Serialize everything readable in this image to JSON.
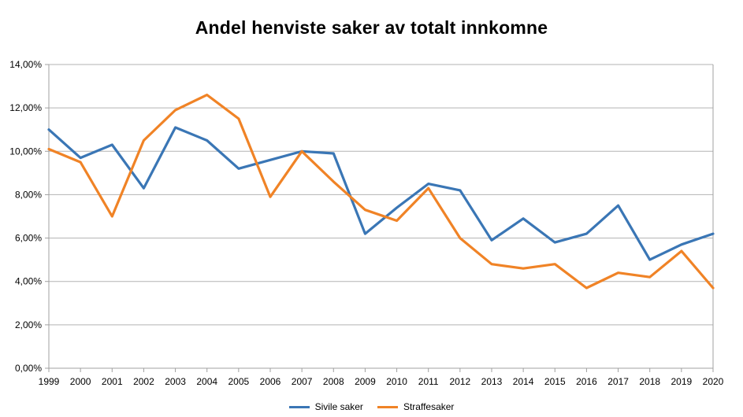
{
  "chart_data": {
    "type": "line",
    "title": "Andel henviste saker av totalt innkomne",
    "categories": [
      "1999",
      "2000",
      "2001",
      "2002",
      "2003",
      "2004",
      "2005",
      "2006",
      "2007",
      "2008",
      "2009",
      "2010",
      "2011",
      "2012",
      "2013",
      "2014",
      "2015",
      "2016",
      "2017",
      "2018",
      "2019",
      "2020"
    ],
    "series": [
      {
        "name": "Sivile saker",
        "color": "#3a76b5",
        "values": [
          11.0,
          9.7,
          10.3,
          8.3,
          11.1,
          10.5,
          9.2,
          9.6,
          10.0,
          9.9,
          6.2,
          7.4,
          8.5,
          8.2,
          5.9,
          6.9,
          5.8,
          6.2,
          7.5,
          5.0,
          5.7,
          6.2
        ]
      },
      {
        "name": "Straffesaker",
        "color": "#f08326",
        "values": [
          10.1,
          9.5,
          7.0,
          10.5,
          11.9,
          12.6,
          11.5,
          7.9,
          10.0,
          8.6,
          7.3,
          6.8,
          8.3,
          6.0,
          4.8,
          4.6,
          4.8,
          3.7,
          4.4,
          4.2,
          5.4,
          3.7
        ]
      }
    ],
    "xlabel": "",
    "ylabel": "",
    "ylim": [
      0,
      14
    ],
    "y_tick_labels": [
      "0,00%",
      "2,00%",
      "4,00%",
      "6,00%",
      "8,00%",
      "10,00%",
      "12,00%",
      "14,00%"
    ],
    "grid": true,
    "legend_position": "bottom"
  },
  "colors": {
    "grid": "#b3b3b3",
    "axis": "#a0a0a0",
    "text": "#000000",
    "background": "#ffffff"
  }
}
